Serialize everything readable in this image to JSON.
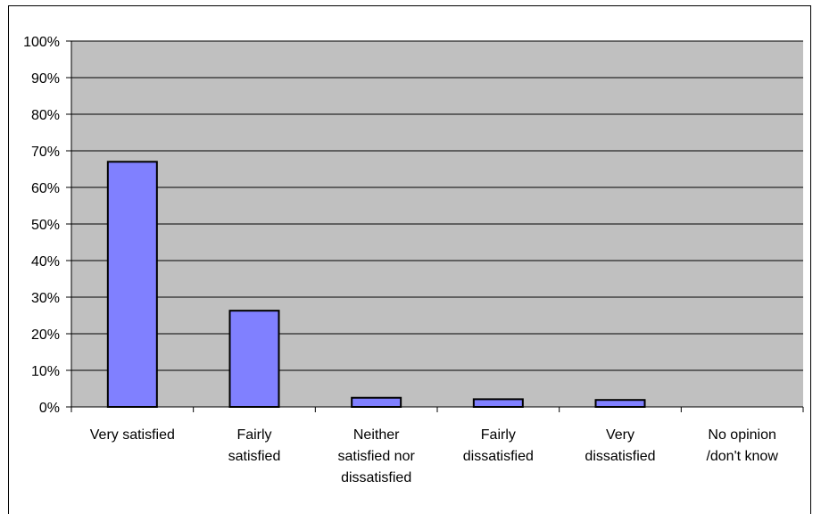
{
  "chart_data": {
    "type": "bar",
    "categories": [
      [
        "Very satisfied"
      ],
      [
        "Fairly",
        "satisfied"
      ],
      [
        "Neither",
        "satisfied nor",
        "dissatisfied"
      ],
      [
        "Fairly",
        "dissatisfied"
      ],
      [
        "Very",
        "dissatisfied"
      ],
      [
        "No opinion",
        "/don't know"
      ]
    ],
    "values": [
      67,
      26.3,
      2.5,
      2.1,
      1.9,
      0
    ],
    "ylim": [
      0,
      100
    ],
    "yticks": [
      "0%",
      "10%",
      "20%",
      "30%",
      "40%",
      "50%",
      "60%",
      "70%",
      "80%",
      "90%",
      "100%"
    ],
    "title": "",
    "xlabel": "",
    "ylabel": "",
    "grid": true,
    "legend": "none",
    "colors": {
      "plot_background": "#c0c0c0",
      "bar_fill": "#8080ff",
      "bar_stroke": "#000000",
      "gridline": "#000000"
    }
  }
}
